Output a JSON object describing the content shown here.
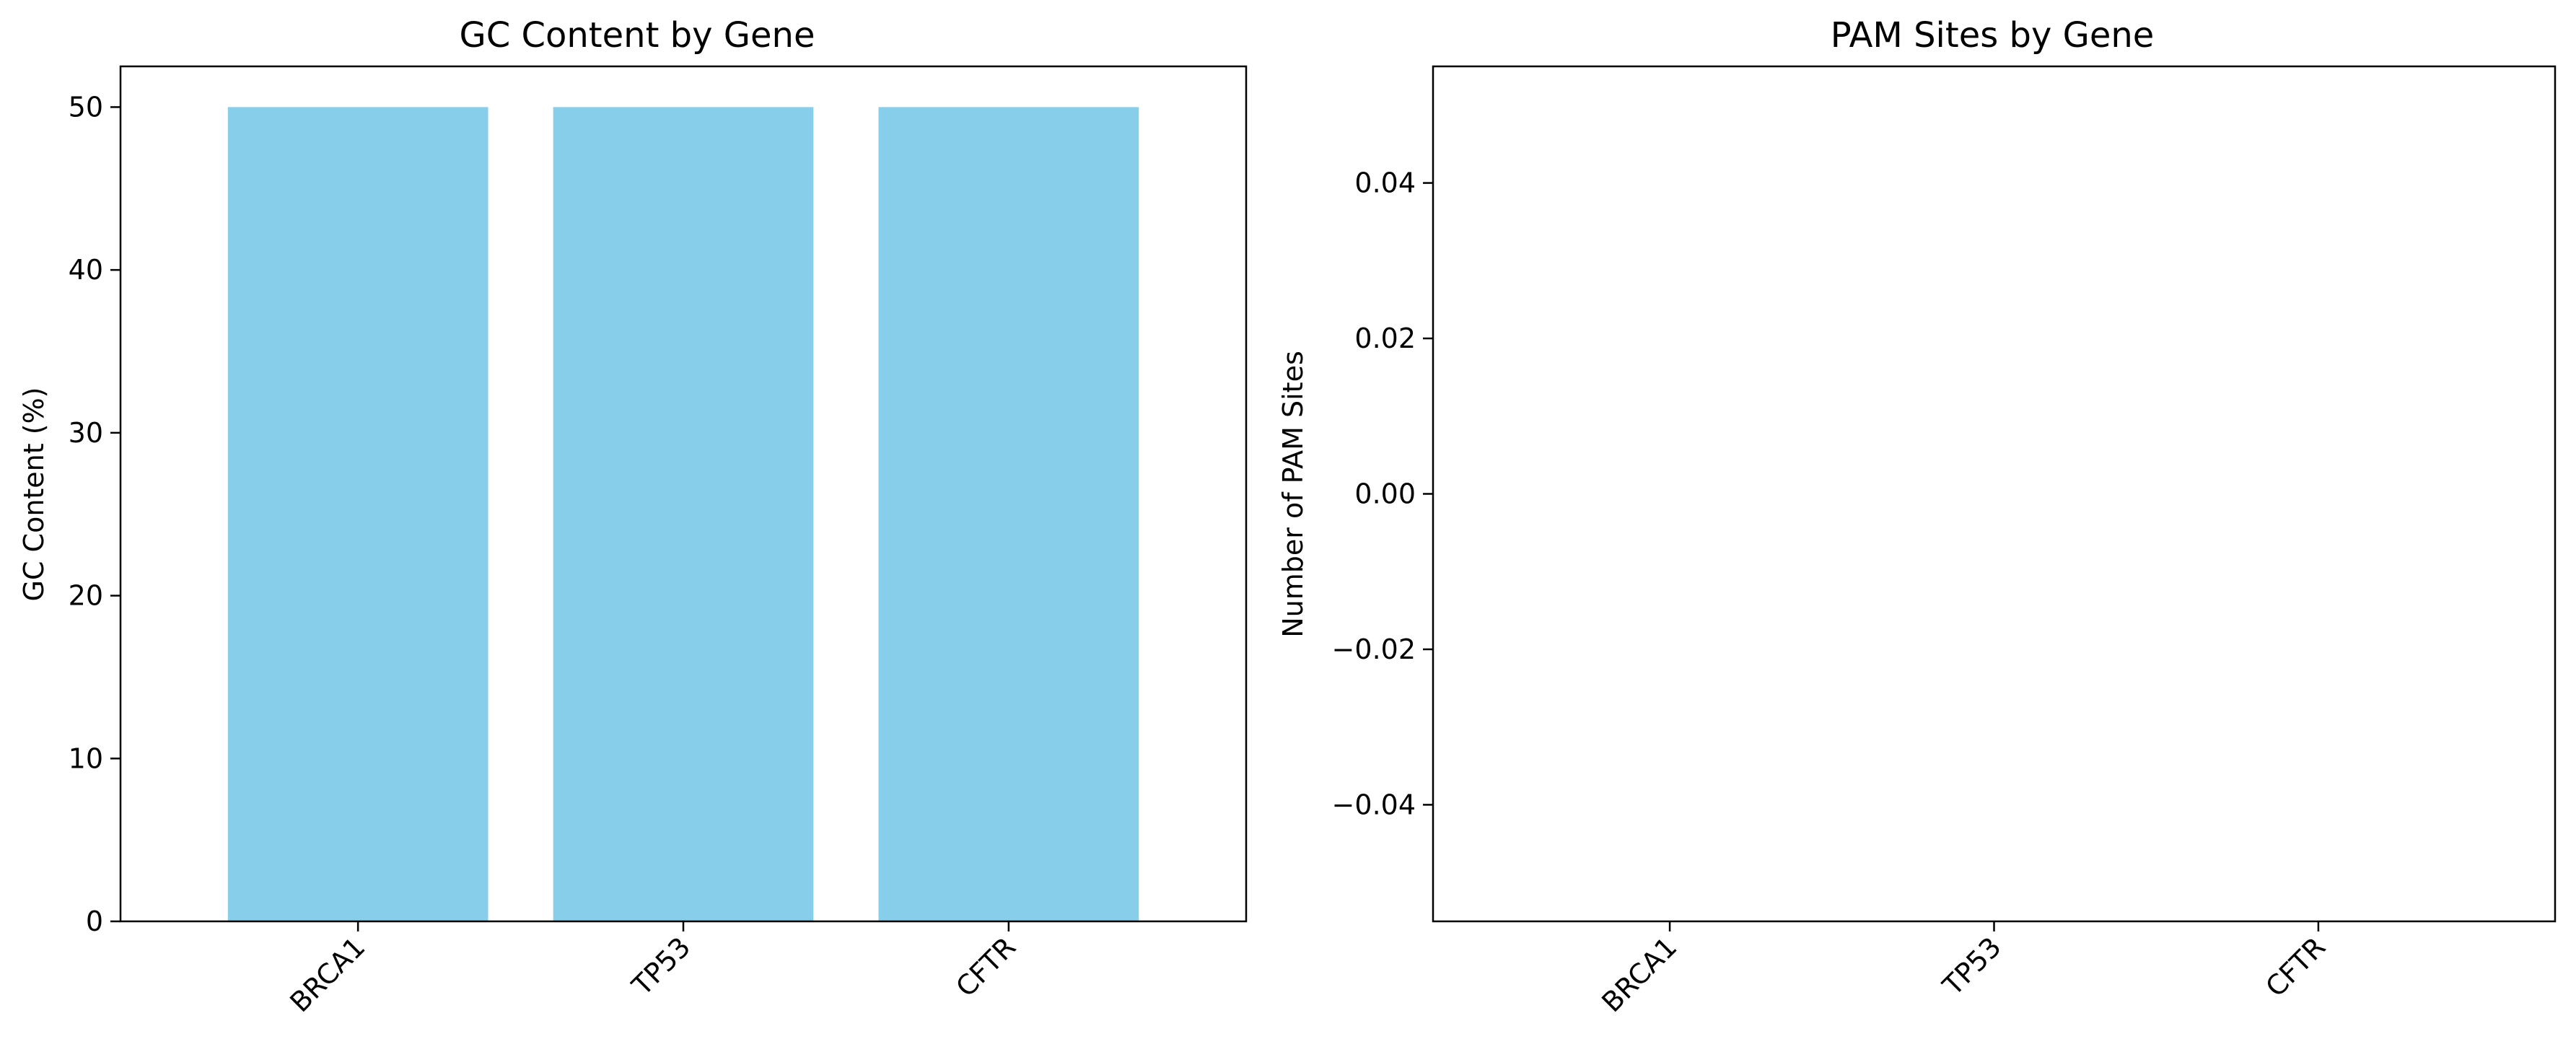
{
  "chart_data": [
    {
      "type": "bar",
      "title": "GC Content by Gene",
      "xlabel": "",
      "ylabel": "GC Content (%)",
      "categories": [
        "BRCA1",
        "TP53",
        "CFTR"
      ],
      "values": [
        50,
        50,
        50
      ],
      "bar_color": "#87CEEB",
      "ylim": [
        0,
        52.5
      ],
      "yticks": [
        0,
        10,
        20,
        30,
        40,
        50
      ],
      "ytick_labels": [
        "0",
        "10",
        "20",
        "30",
        "40",
        "50"
      ],
      "xtick_rotation": 45,
      "grid": false,
      "legend": false
    },
    {
      "type": "bar",
      "title": "PAM Sites by Gene",
      "xlabel": "",
      "ylabel": "Number of PAM Sites",
      "categories": [
        "BRCA1",
        "TP53",
        "CFTR"
      ],
      "values": [
        0,
        0,
        0
      ],
      "bar_color": "#87CEEB",
      "ylim": [
        -0.055,
        0.055
      ],
      "yticks": [
        -0.04,
        -0.02,
        0.0,
        0.02,
        0.04
      ],
      "ytick_labels": [
        "−0.04",
        "−0.02",
        "0.00",
        "0.02",
        "0.04"
      ],
      "xtick_rotation": 45,
      "grid": false,
      "legend": false
    }
  ]
}
